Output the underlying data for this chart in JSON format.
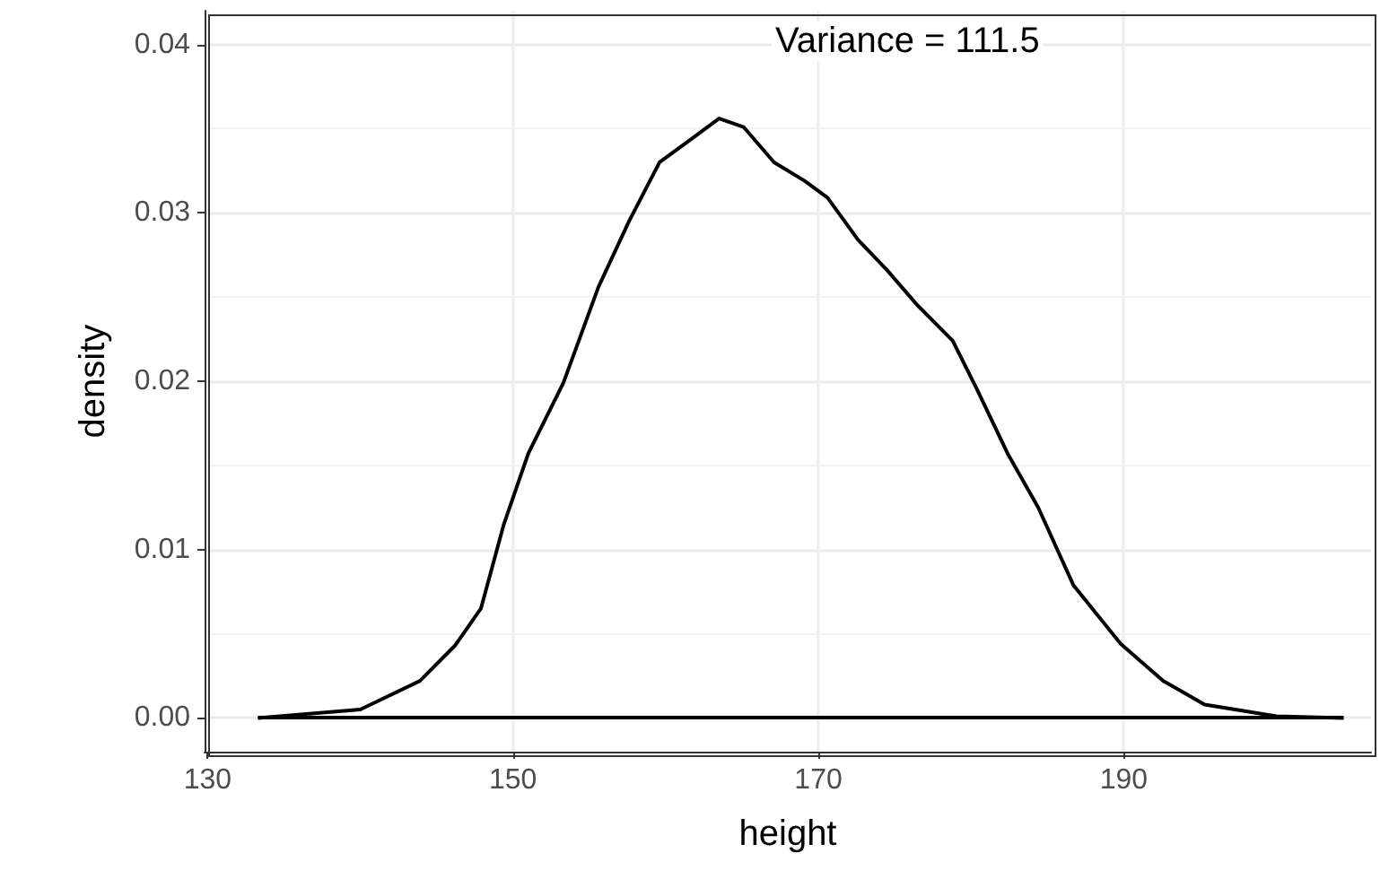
{
  "chart_data": {
    "type": "line",
    "xlabel": "height",
    "ylabel": "density",
    "annotations": [
      "Variance = 111.5"
    ],
    "series": [
      {
        "color": "#000000",
        "x": [
          133.3,
          140,
          143.9,
          146.2,
          147.9,
          149.4,
          151,
          153.3,
          155.6,
          157.6,
          159.6,
          163.5,
          165.1,
          167.1,
          169.1,
          170.6,
          172.6,
          174.5,
          176.5,
          178.8,
          180.4,
          182.4,
          184.4,
          186.7,
          189.8,
          192.6,
          195.3,
          200,
          204.4
        ],
        "values": [
          0,
          0.0005,
          0.0022,
          0.0043,
          0.0065,
          0.0115,
          0.0157,
          0.0199,
          0.0256,
          0.0295,
          0.033,
          0.0356,
          0.0351,
          0.033,
          0.0319,
          0.0309,
          0.0284,
          0.0266,
          0.0245,
          0.0224,
          0.0195,
          0.0157,
          0.0125,
          0.0079,
          0.0044,
          0.0022,
          0.0008,
          0.0001,
          0
        ]
      }
    ],
    "xlim": [
      129.8,
      206.2
    ],
    "xticks": [
      130,
      150,
      170,
      190
    ],
    "ylim": [
      -0.002,
      0.042
    ],
    "yticks": [
      {
        "value": 0,
        "label": "0.00"
      },
      {
        "value": 0.01,
        "label": "0.01"
      },
      {
        "value": 0.02,
        "label": "0.02"
      },
      {
        "value": 0.03,
        "label": "0.03"
      },
      {
        "value": 0.04,
        "label": "0.04"
      }
    ],
    "grid": true,
    "marker": "none",
    "line_style": "solid"
  }
}
